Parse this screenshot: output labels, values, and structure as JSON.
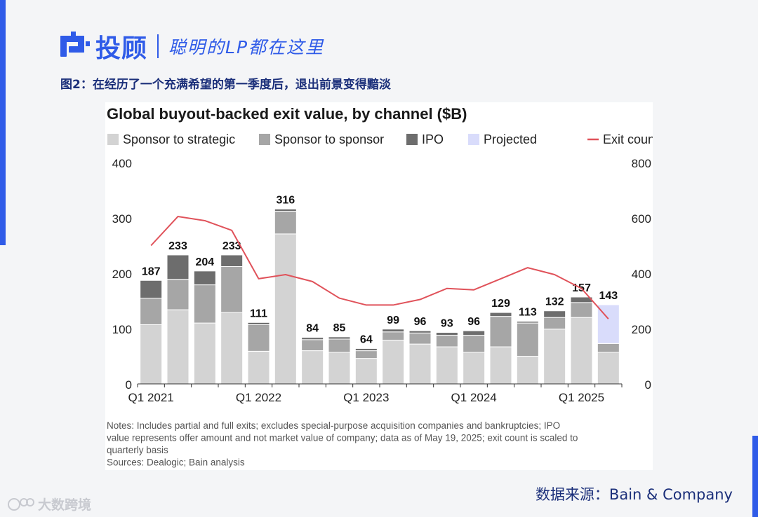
{
  "header": {
    "brand_name": "投顾",
    "slogan": "聪明的LP都在这里",
    "figure_caption": "图2：在经历了一个充满希望的第一季度后，退出前景变得黯淡"
  },
  "footer": {
    "source": "数据来源：Bain & Company",
    "watermark": "大数跨境"
  },
  "colors": {
    "accent": "#2f5be8",
    "sponsor_to_strategic": "#d3d3d3",
    "sponsor_to_sponsor": "#a6a6a6",
    "ipo": "#6d6d6d",
    "projected": "#d9dcfb",
    "exit_count": "#e0525a"
  },
  "chart_data": {
    "type": "bar",
    "stacked": true,
    "title": "Global buyout-backed exit value, by channel ($B)",
    "legend": [
      "Sponsor to strategic",
      "Sponsor to sponsor",
      "IPO",
      "Projected",
      "Exit count"
    ],
    "legend_position": "top-left",
    "x_tick_labels": [
      "Q1 2021",
      "Q1 2022",
      "Q1 2023",
      "Q1 2024",
      "Q1 2025"
    ],
    "x_tick_indices": [
      0,
      4,
      8,
      12,
      16
    ],
    "ylim": [
      0,
      400
    ],
    "y_ticks": [
      "0",
      "100",
      "200",
      "300",
      "400"
    ],
    "y2lim": [
      0,
      800
    ],
    "y2_ticks": [
      "0",
      "200",
      "400",
      "600",
      "800"
    ],
    "totals": [
      187,
      233,
      204,
      233,
      111,
      316,
      84,
      85,
      64,
      99,
      96,
      93,
      96,
      129,
      113,
      132,
      157,
      143
    ],
    "series": [
      {
        "name": "Sponsor to strategic",
        "values": [
          107,
          134,
          110,
          129,
          59,
          271,
          60,
          57,
          46,
          79,
          72,
          67,
          57,
          67,
          50,
          99,
          120,
          57
        ]
      },
      {
        "name": "Sponsor to sponsor",
        "values": [
          48,
          55,
          69,
          83,
          48,
          41,
          20,
          24,
          14,
          15,
          20,
          21,
          31,
          55,
          60,
          21,
          27,
          16
        ]
      },
      {
        "name": "IPO",
        "values": [
          32,
          44,
          25,
          21,
          4,
          4,
          4,
          4,
          4,
          5,
          4,
          5,
          8,
          7,
          3,
          12,
          10,
          0
        ]
      },
      {
        "name": "Projected",
        "values": [
          0,
          0,
          0,
          0,
          0,
          0,
          0,
          0,
          0,
          0,
          0,
          0,
          0,
          0,
          0,
          0,
          0,
          70
        ]
      }
    ],
    "exit_count": [
      500,
      605,
      590,
      555,
      380,
      395,
      370,
      310,
      285,
      285,
      305,
      345,
      340,
      380,
      420,
      395,
      345,
      235
    ],
    "notes": [
      "Notes: Includes partial and full exits; excludes special-purpose acquisition companies and bankruptcies; IPO",
      "value represents offer amount and not market value of company; data as of May 19, 2025; exit count is scaled to",
      "quarterly basis",
      "Sources: Dealogic; Bain analysis"
    ]
  }
}
